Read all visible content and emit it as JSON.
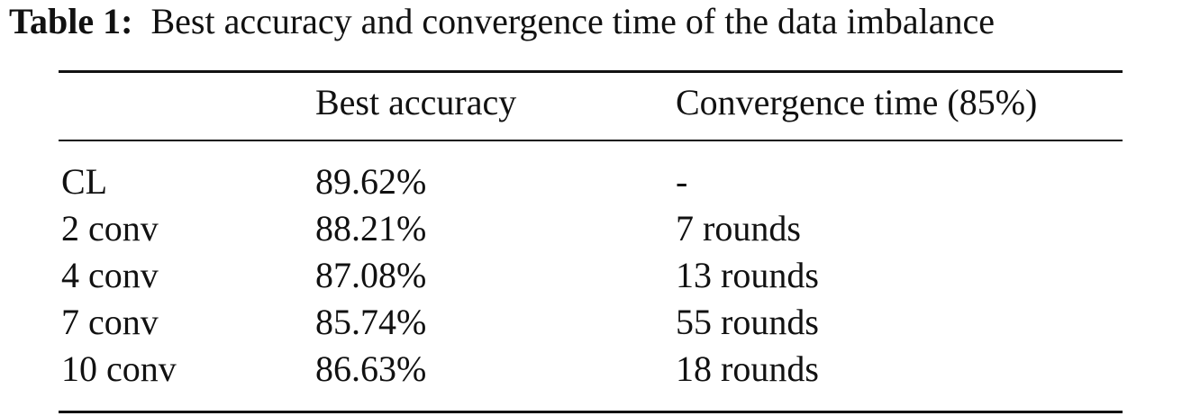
{
  "caption": {
    "label": "Table 1:",
    "text": "Best accuracy and convergence time of the data imbalance"
  },
  "table": {
    "header": [
      "Best accuracy",
      "Convergence time (85%)"
    ],
    "rows": [
      [
        "CL",
        "89.62%",
        "-"
      ],
      [
        "2 conv",
        "88.21%",
        "7 rounds"
      ],
      [
        "4 conv",
        "87.08%",
        "13 rounds"
      ],
      [
        "7 conv",
        "85.74%",
        "55 rounds"
      ],
      [
        "10 conv",
        "86.63%",
        "18 rounds"
      ]
    ]
  }
}
